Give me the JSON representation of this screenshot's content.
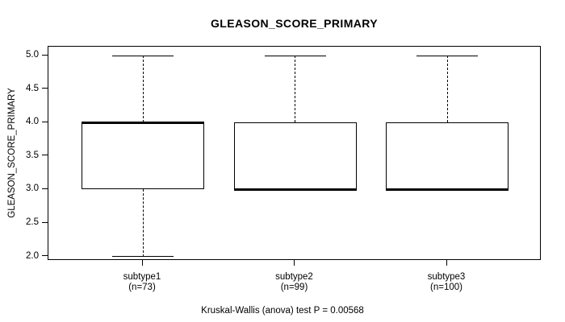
{
  "chart_data": {
    "type": "box",
    "title": "GLEASON_SCORE_PRIMARY",
    "ylabel": "GLEASON_SCORE_PRIMARY",
    "caption": "Kruskal-Wallis (anova) test P = 0.00568",
    "ylim": [
      2.0,
      5.0
    ],
    "y_tick_labels": [
      "5.0",
      "4.5",
      "4.0",
      "3.5",
      "3.0",
      "2.5",
      "2.0"
    ],
    "grid": false,
    "legend": null,
    "categories": [
      {
        "label": "subtype1",
        "n_label": "(n=73)"
      },
      {
        "label": "subtype2",
        "n_label": "(n=99)"
      },
      {
        "label": "subtype3",
        "n_label": "(n=100)"
      }
    ],
    "series": [
      {
        "name": "subtype1",
        "n": 73,
        "min": 2.0,
        "q1": 3.0,
        "median": 4.0,
        "q3": 4.0,
        "max": 5.0,
        "outliers": []
      },
      {
        "name": "subtype2",
        "n": 99,
        "min": 3.0,
        "q1": 3.0,
        "median": 3.0,
        "q3": 4.0,
        "max": 5.0,
        "outliers": []
      },
      {
        "name": "subtype3",
        "n": 100,
        "min": 3.0,
        "q1": 3.0,
        "median": 3.0,
        "q3": 4.0,
        "max": 5.0,
        "outliers": []
      }
    ],
    "colors": {
      "line": "#000000",
      "background": "#ffffff",
      "box_fill": "#ffffff"
    }
  }
}
